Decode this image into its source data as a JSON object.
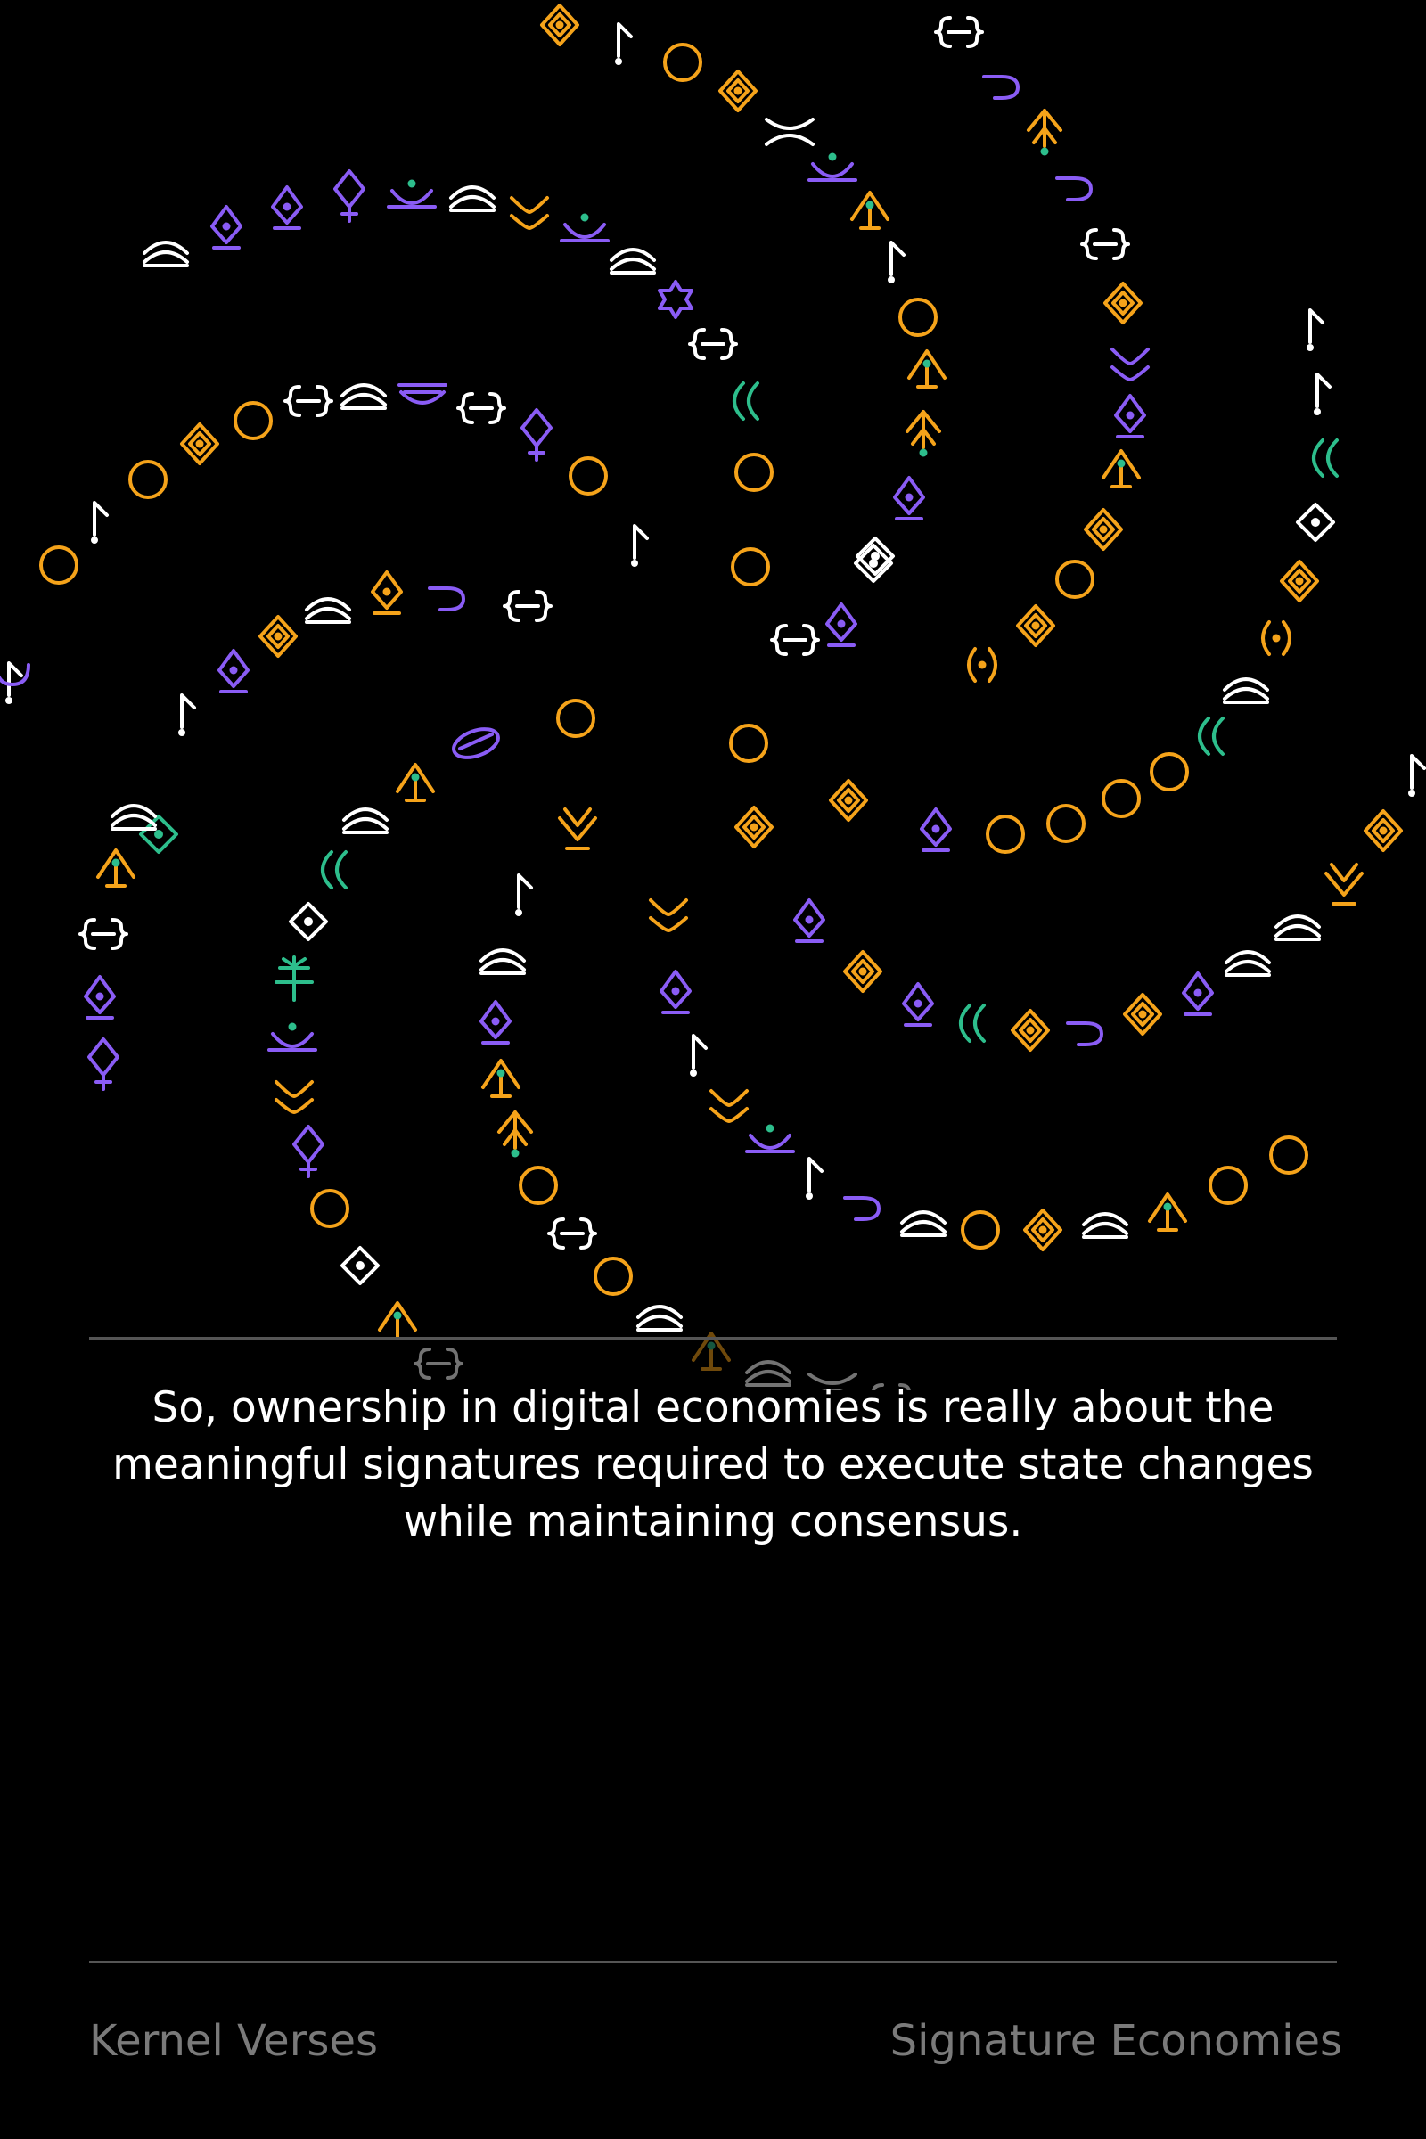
{
  "quote": "So, ownership in digital economies is really about the meaningful signatures required to execute state changes while maintaining consensus.",
  "footer": {
    "left": "Kernel Verses",
    "right": "Signature Economies"
  },
  "colors": {
    "background": "#000000",
    "orange": "#F5A31A",
    "purple": "#8A5CF5",
    "white": "#FFFFFF",
    "green": "#2DBE8C",
    "divider": "#555555",
    "footer_text": "#7A7A7A"
  },
  "glyph_kinds": [
    "circle-glyph",
    "diamond-glyph",
    "nested-diamond-glyph",
    "bracket-glyph",
    "flag-glyph",
    "arrow-glyph",
    "cup-glyph",
    "arch-glyph",
    "crescent-glyph",
    "spark-glyph",
    "bowl-glyph",
    "tree-glyph"
  ]
}
